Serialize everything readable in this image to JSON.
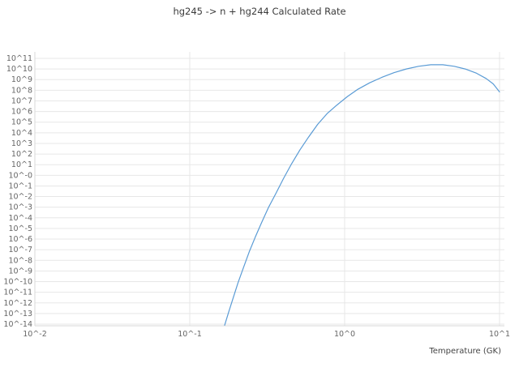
{
  "chart": {
    "title": "hg245 -> n + hg244 Calculated Rate",
    "xlabel": "Temperature (GK)"
  },
  "chart_data": {
    "type": "line",
    "title": "hg245 -> n + hg244 Calculated Rate",
    "xlabel": "Temperature (GK)",
    "ylabel": "",
    "x_scale": "log",
    "y_scale": "log",
    "x_range_log10": [
      -2,
      1.03
    ],
    "y_range_log10": [
      -14.2,
      11.6
    ],
    "grid": true,
    "legend": "none",
    "line_color": "#5a9bd5",
    "grid_color": "#e7e7e7",
    "axis_color": "#d9d9d9",
    "x_ticks": [
      {
        "log10": -2,
        "label": "10^-2"
      },
      {
        "log10": -1,
        "label": "10^-1"
      },
      {
        "log10": 0,
        "label": "10^0"
      },
      {
        "log10": 1,
        "label": "10^1"
      }
    ],
    "y_ticks": [
      {
        "log10": 11,
        "label": "10^11"
      },
      {
        "log10": 10,
        "label": "10^10"
      },
      {
        "log10": 9,
        "label": "10^9"
      },
      {
        "log10": 8,
        "label": "10^8"
      },
      {
        "log10": 7,
        "label": "10^7"
      },
      {
        "log10": 6,
        "label": "10^6"
      },
      {
        "log10": 5,
        "label": "10^5"
      },
      {
        "log10": 4,
        "label": "10^4"
      },
      {
        "log10": 3,
        "label": "10^3"
      },
      {
        "log10": 2,
        "label": "10^2"
      },
      {
        "log10": 1,
        "label": "10^1"
      },
      {
        "log10": 0,
        "label": "10^-0"
      },
      {
        "log10": -1,
        "label": "10^-1"
      },
      {
        "log10": -2,
        "label": "10^-2"
      },
      {
        "log10": -3,
        "label": "10^-3"
      },
      {
        "log10": -4,
        "label": "10^-4"
      },
      {
        "log10": -5,
        "label": "10^-5"
      },
      {
        "log10": -6,
        "label": "10^-6"
      },
      {
        "log10": -7,
        "label": "10^-7"
      },
      {
        "log10": -8,
        "label": "10^-8"
      },
      {
        "log10": -9,
        "label": "10^-9"
      },
      {
        "log10": -10,
        "label": "10^-10"
      },
      {
        "log10": -11,
        "label": "10^-11"
      },
      {
        "log10": -12,
        "label": "10^-12"
      },
      {
        "log10": -13,
        "label": "10^-13"
      },
      {
        "log10": -14,
        "label": "10^-14"
      }
    ],
    "series": [
      {
        "name": "calculated-rate",
        "y_is_log10": true,
        "points": [
          [
            0.168,
            -14.1
          ],
          [
            0.178,
            -12.9
          ],
          [
            0.19,
            -11.6
          ],
          [
            0.205,
            -10.1
          ],
          [
            0.222,
            -8.7
          ],
          [
            0.242,
            -7.2
          ],
          [
            0.265,
            -5.8
          ],
          [
            0.292,
            -4.4
          ],
          [
            0.323,
            -3.0
          ],
          [
            0.36,
            -1.7
          ],
          [
            0.403,
            -0.3
          ],
          [
            0.455,
            1.1
          ],
          [
            0.515,
            2.4
          ],
          [
            0.585,
            3.6
          ],
          [
            0.67,
            4.8
          ],
          [
            0.77,
            5.8
          ],
          [
            0.89,
            6.6
          ],
          [
            1.04,
            7.4
          ],
          [
            1.22,
            8.1
          ],
          [
            1.45,
            8.7
          ],
          [
            1.73,
            9.2
          ],
          [
            2.08,
            9.65
          ],
          [
            2.5,
            10.0
          ],
          [
            3.0,
            10.25
          ],
          [
            3.6,
            10.4
          ],
          [
            4.3,
            10.4
          ],
          [
            5.1,
            10.25
          ],
          [
            6.0,
            10.0
          ],
          [
            7.1,
            9.6
          ],
          [
            8.2,
            9.1
          ],
          [
            9.1,
            8.6
          ],
          [
            10.0,
            7.85
          ]
        ]
      }
    ]
  }
}
